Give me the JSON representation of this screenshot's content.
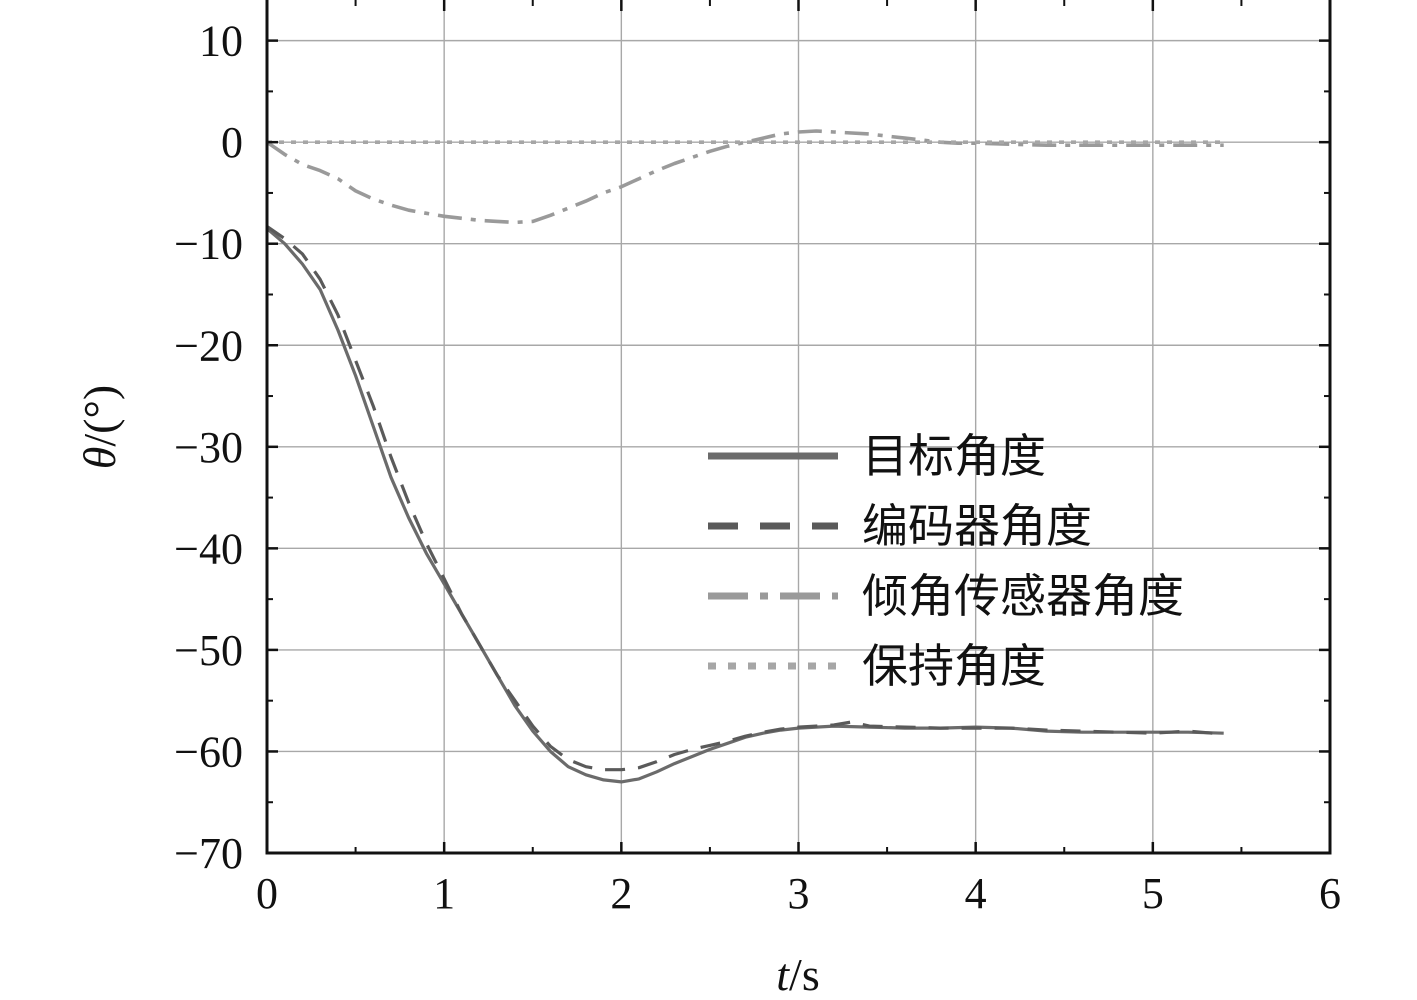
{
  "chart_data": {
    "type": "line",
    "title": "",
    "xlabel_var": "t",
    "xlabel_unit": "/s",
    "ylabel_var": "θ",
    "ylabel_unit": "/(°)",
    "xlim": [
      0,
      6
    ],
    "ylim": [
      -70,
      14
    ],
    "xticks": [
      0,
      1,
      2,
      3,
      4,
      5,
      6
    ],
    "yticks": [
      10,
      0,
      -10,
      -20,
      -30,
      -40,
      -50,
      -60,
      -70
    ],
    "xtick_labels": [
      "0",
      "1",
      "2",
      "3",
      "4",
      "5",
      "6"
    ],
    "ytick_labels": [
      "10",
      "0",
      "−10",
      "−20",
      "−30",
      "−40",
      "−50",
      "−60",
      "−70"
    ],
    "grid": true,
    "legend_position": "right-center",
    "series": [
      {
        "name": "目标角度",
        "style": "solid",
        "color": "#6b6b6b",
        "x": [
          0,
          0.1,
          0.2,
          0.3,
          0.4,
          0.5,
          0.6,
          0.7,
          0.8,
          0.9,
          1.0,
          1.1,
          1.2,
          1.3,
          1.4,
          1.5,
          1.6,
          1.7,
          1.8,
          1.9,
          2.0,
          2.1,
          2.2,
          2.3,
          2.4,
          2.5,
          2.6,
          2.7,
          2.8,
          2.9,
          3.0,
          3.2,
          3.4,
          3.6,
          3.8,
          4.0,
          4.2,
          4.4,
          4.6,
          4.8,
          5.0,
          5.2,
          5.4
        ],
        "y": [
          -8.5,
          -10,
          -12,
          -14.5,
          -18.5,
          -23,
          -28,
          -33,
          -37,
          -40.5,
          -43.5,
          -46.5,
          -49.5,
          -52.5,
          -55.5,
          -58,
          -60,
          -61.5,
          -62.3,
          -62.8,
          -63,
          -62.7,
          -62,
          -61.2,
          -60.5,
          -59.8,
          -59.2,
          -58.6,
          -58.2,
          -57.9,
          -57.7,
          -57.5,
          -57.6,
          -57.7,
          -57.7,
          -57.6,
          -57.7,
          -58,
          -58.1,
          -58.1,
          -58.1,
          -58.1,
          -58.2
        ]
      },
      {
        "name": "编码器角度",
        "style": "dashed",
        "color": "#5a5a5a",
        "x": [
          0,
          0.1,
          0.2,
          0.3,
          0.4,
          0.5,
          0.6,
          0.7,
          0.8,
          0.9,
          1.0,
          1.1,
          1.2,
          1.3,
          1.4,
          1.5,
          1.6,
          1.7,
          1.8,
          1.9,
          2.0,
          2.1,
          2.2,
          2.3,
          2.4,
          2.5,
          2.6,
          2.7,
          2.8,
          2.9,
          3.0,
          3.1,
          3.2,
          3.3,
          3.4,
          3.6,
          3.8,
          4.0,
          4.2,
          4.4,
          4.6,
          4.8,
          5.0,
          5.2,
          5.4
        ],
        "y": [
          -8.3,
          -9.5,
          -11,
          -13.5,
          -17,
          -21.5,
          -26,
          -31,
          -35.5,
          -39.5,
          -43,
          -46.5,
          -49.5,
          -52.5,
          -55,
          -57.5,
          -59.5,
          -60.8,
          -61.5,
          -61.8,
          -61.8,
          -61.6,
          -61,
          -60.3,
          -59.8,
          -59.4,
          -59,
          -58.5,
          -58.1,
          -57.8,
          -57.6,
          -57.5,
          -57.4,
          -57.1,
          -57.5,
          -57.6,
          -57.7,
          -57.7,
          -57.7,
          -57.9,
          -58,
          -58.1,
          -58.2,
          -58,
          -58.3
        ]
      },
      {
        "name": "倾角传感器角度",
        "style": "dashdot",
        "color": "#9a9a9a",
        "x": [
          0,
          0.1,
          0.2,
          0.3,
          0.4,
          0.5,
          0.6,
          0.7,
          0.8,
          0.9,
          1.0,
          1.1,
          1.2,
          1.3,
          1.4,
          1.5,
          1.6,
          1.7,
          1.8,
          1.9,
          2.0,
          2.1,
          2.2,
          2.3,
          2.4,
          2.5,
          2.6,
          2.7,
          2.8,
          2.9,
          3.0,
          3.1,
          3.2,
          3.3,
          3.4,
          3.5,
          3.6,
          3.7,
          3.8,
          3.9,
          4.0,
          4.2,
          4.4,
          4.6,
          4.8,
          5.0,
          5.2,
          5.4
        ],
        "y": [
          0,
          -1.2,
          -2.2,
          -2.8,
          -3.6,
          -4.8,
          -5.6,
          -6.2,
          -6.7,
          -7,
          -7.3,
          -7.5,
          -7.7,
          -7.8,
          -7.9,
          -7.8,
          -7.2,
          -6.5,
          -5.8,
          -5,
          -4.4,
          -3.6,
          -2.8,
          -2.1,
          -1.5,
          -0.9,
          -0.4,
          0,
          0.4,
          0.8,
          1,
          1.1,
          1,
          0.9,
          0.8,
          0.6,
          0.4,
          0.2,
          0,
          -0.1,
          -0.1,
          -0.2,
          -0.3,
          -0.3,
          -0.3,
          -0.3,
          -0.3,
          -0.3
        ]
      },
      {
        "name": "保持角度",
        "style": "dotted",
        "color": "#a6a6a6",
        "x": [
          0,
          5.4
        ],
        "y": [
          0,
          0
        ]
      }
    ]
  }
}
